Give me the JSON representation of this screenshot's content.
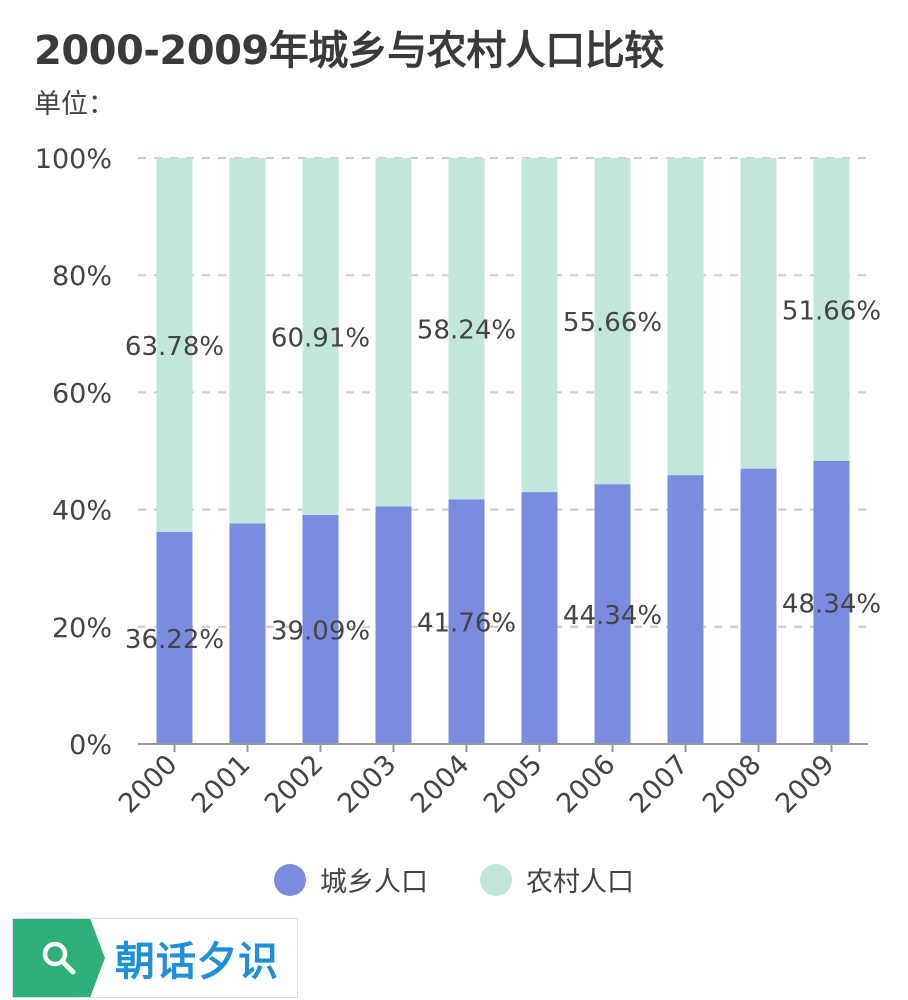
{
  "title": "2000-2009年城乡与农村人口比较",
  "unit_label": "单位：",
  "watermark_text": "朝话夕识",
  "colors": {
    "urban": "#7b8ce0",
    "rural": "#c2e6dc",
    "grid": "#cccccc",
    "axis": "#999999",
    "text": "#444444",
    "watermark_green": "#2fb07a",
    "watermark_blue": "#1f8fd6"
  },
  "chart_data": {
    "type": "bar",
    "stacked": true,
    "categories": [
      "2000",
      "2001",
      "2002",
      "2003",
      "2004",
      "2005",
      "2006",
      "2007",
      "2008",
      "2009"
    ],
    "series": [
      {
        "name": "城乡人口",
        "values": [
          36.22,
          37.66,
          39.09,
          40.53,
          41.76,
          42.99,
          44.34,
          45.89,
          46.99,
          48.34
        ]
      },
      {
        "name": "农村人口",
        "values": [
          63.78,
          62.34,
          60.91,
          59.47,
          58.24,
          57.01,
          55.66,
          54.11,
          53.01,
          51.66
        ]
      }
    ],
    "data_labels": [
      {
        "series": 0,
        "index": 0,
        "text": "36.22%"
      },
      {
        "series": 0,
        "index": 2,
        "text": "39.09%"
      },
      {
        "series": 0,
        "index": 4,
        "text": "41.76%"
      },
      {
        "series": 0,
        "index": 6,
        "text": "44.34%"
      },
      {
        "series": 0,
        "index": 9,
        "text": "48.34%"
      },
      {
        "series": 1,
        "index": 0,
        "text": "63.78%"
      },
      {
        "series": 1,
        "index": 2,
        "text": "60.91%"
      },
      {
        "series": 1,
        "index": 4,
        "text": "58.24%"
      },
      {
        "series": 1,
        "index": 6,
        "text": "55.66%"
      },
      {
        "series": 1,
        "index": 9,
        "text": "51.66%"
      }
    ],
    "yticks": [
      "0%",
      "20%",
      "40%",
      "60%",
      "80%",
      "100%"
    ],
    "ylim": [
      0,
      100
    ],
    "grid": true,
    "legend_position": "bottom"
  }
}
